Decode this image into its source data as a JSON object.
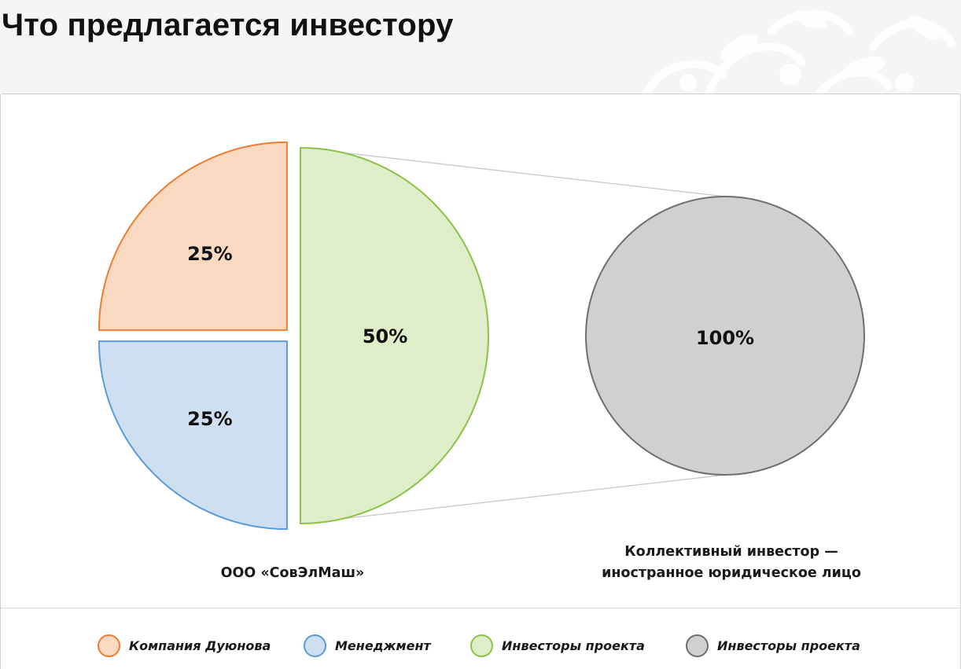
{
  "header": {
    "title": "Что предлагается инвестору"
  },
  "colors": {
    "orange_fill": "#f9d9c0",
    "orange_stroke": "#ed7d31",
    "blue_fill": "#cfdff2",
    "blue_stroke": "#5b9bd5",
    "green_fill": "#ddeec8",
    "green_stroke": "#8cc24a",
    "gray_fill": "#d0d0d0",
    "gray_stroke": "#6e6e6e",
    "connector": "#c8c8c8"
  },
  "chart_data": [
    {
      "type": "pie",
      "title": "",
      "caption": "ООО «СовЭлМаш»",
      "slices": [
        {
          "label": "25%",
          "value": 25,
          "legend": "Компания Дуюнова",
          "color": "orange"
        },
        {
          "label": "25%",
          "value": 25,
          "legend": "Менеджмент",
          "color": "blue"
        },
        {
          "label": "50%",
          "value": 50,
          "legend": "Инвесторы проекта",
          "color": "green"
        }
      ]
    },
    {
      "type": "pie",
      "title": "",
      "caption": [
        "Коллективный инвестор —",
        "иностранное юридическое лицо"
      ],
      "slices": [
        {
          "label": "100%",
          "value": 100,
          "legend": "Инвесторы проекта",
          "color": "gray"
        }
      ]
    }
  ],
  "legend": {
    "items": [
      {
        "label": "Компания Дуюнова",
        "color": "orange"
      },
      {
        "label": "Менеджмент",
        "color": "blue"
      },
      {
        "label": "Инвесторы проекта",
        "color": "green"
      },
      {
        "label": "Инвесторы проекта",
        "color": "gray"
      }
    ]
  }
}
